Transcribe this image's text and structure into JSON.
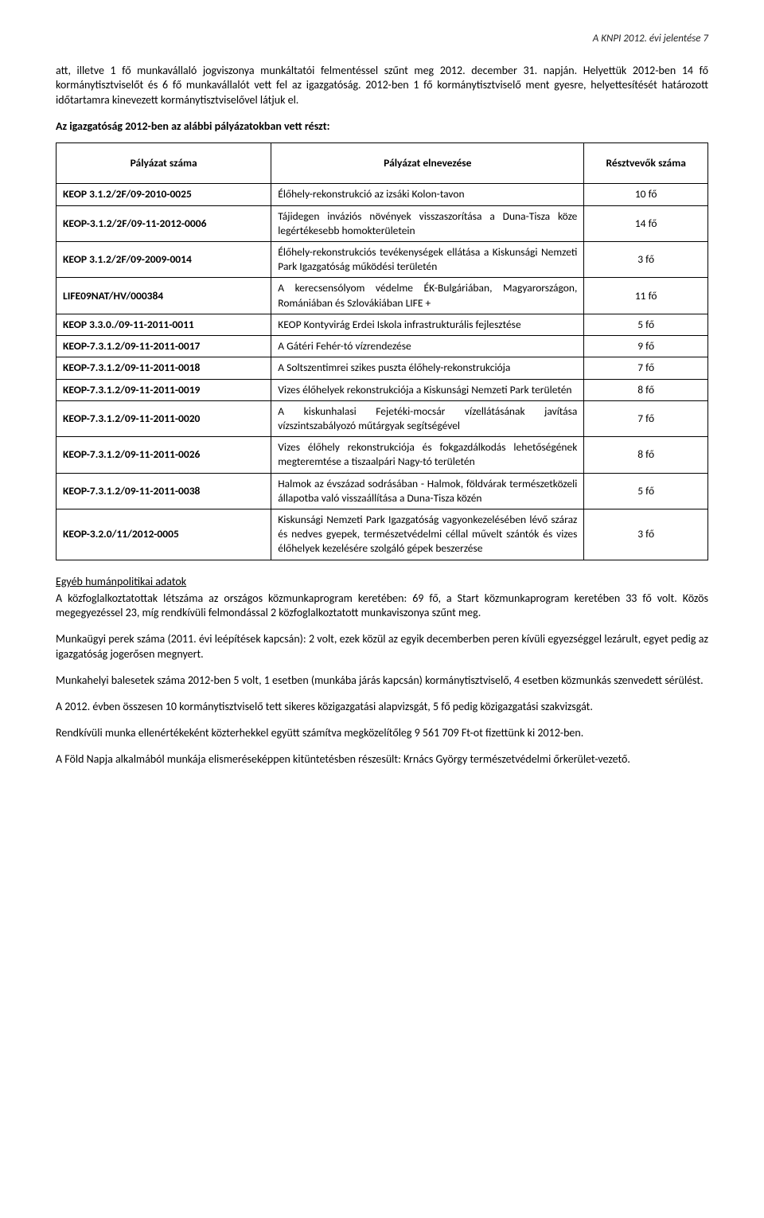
{
  "header": {
    "text": "A KNPI 2012. évi jelentése   7"
  },
  "intro_paragraphs": [
    "att, illetve 1 fő munkavállaló jogviszonya munkáltatói felmentéssel szűnt meg 2012. december 31. napján. Helyettük 2012-ben 14 fő kormánytisztviselőt és 6 fő munkavállalót vett fel az igazgatóság. 2012-ben 1 fő kormánytisztviselő ment gyesre, helyettesítését határozott időtartamra kinevezett kormánytisztviselővel látjuk el."
  ],
  "bold_intro": "Az igazgatóság 2012-ben az alábbi pályázatokban vett részt:",
  "table": {
    "headers": {
      "code": "Pályázat száma",
      "desc": "Pályázat elnevezése",
      "count": "Résztvevők száma"
    },
    "rows": [
      {
        "code": "KEOP 3.1.2/2F/09-2010-0025",
        "desc": "Élőhely-rekonstrukció az izsáki Kolon-tavon",
        "count": "10 fő"
      },
      {
        "code": "KEOP-3.1.2/2F/09-11-2012-0006",
        "desc": "Tájidegen inváziós növények visszaszorítása a Duna-Tisza köze legértékesebb homokterületein",
        "count": "14 fő"
      },
      {
        "code": "KEOP 3.1.2/2F/09-2009-0014",
        "desc": "Élőhely-rekonstrukciós tevékenységek ellátása a Kiskunsági Nemzeti Park Igazgatóság működési területén",
        "count": "3 fő"
      },
      {
        "code": "LIFE09NAT/HV/000384",
        "desc": "A kerecsensólyom védelme ÉK-Bulgáriában, Magyarországon, Romániában és Szlovákiában LIFE +",
        "count": "11 fő"
      },
      {
        "code": "KEOP 3.3.0./09-11-2011-0011",
        "desc": "KEOP Kontyvirág Erdei Iskola infrastrukturális fejlesztése",
        "count": "5 fő"
      },
      {
        "code": "KEOP-7.3.1.2/09-11-2011-0017",
        "desc": "A Gátéri Fehér-tó vízrendezése",
        "count": "9 fő"
      },
      {
        "code": "KEOP-7.3.1.2/09-11-2011-0018",
        "desc": "A Soltszentimrei szikes puszta élőhely-rekonstrukciója",
        "count": "7 fő"
      },
      {
        "code": "KEOP-7.3.1.2/09-11-2011-0019",
        "desc": "Vizes élőhelyek rekonstrukciója a Kiskunsági Nemzeti Park területén",
        "count": "8 fő"
      },
      {
        "code": "KEOP-7.3.1.2/09-11-2011-0020",
        "desc": "A kiskunhalasi Fejetéki-mocsár vízellátásának javítása vízszintszabályozó műtárgyak segítségével",
        "count": "7 fő"
      },
      {
        "code": "KEOP-7.3.1.2/09-11-2011-0026",
        "desc": "Vizes élőhely rekonstrukciója és fokgazdálkodás lehetőségének megteremtése a tiszaalpári Nagy-tó területén",
        "count": "8 fő"
      },
      {
        "code": "KEOP-7.3.1.2/09-11-2011-0038",
        "desc": "Halmok az évszázad sodrásában - Halmok, földvárak természetközeli állapotba való visszaállítása a Duna-Tisza közén",
        "count": "5 fő"
      },
      {
        "code": "KEOP-3.2.0/11/2012-0005",
        "desc": "Kiskunsági Nemzeti Park Igazgatóság vagyonkezelésében lévő száraz és nedves gyepek, természetvédelmi céllal művelt szántók és vizes élőhelyek kezelésére szolgáló gépek beszerzése",
        "count": "3 fő"
      }
    ]
  },
  "section_heading": "Egyéb humánpolitikai adatok",
  "body_paragraphs": [
    "A közfoglalkoztatottak létszáma az országos közmunkaprogram keretében: 69 fő, a Start közmunkaprogram keretében 33 fő volt. Közös megegyezéssel 23, míg rendkívüli felmondással 2 közfoglalkoztatott munkaviszonya szűnt meg.",
    "Munkaügyi perek száma (2011. évi leépítések kapcsán): 2 volt, ezek közül az egyik decemberben peren kívüli egyezséggel lezárult, egyet pedig az igazgatóság jogerősen megnyert.",
    "Munkahelyi balesetek száma 2012-ben 5 volt, 1 esetben (munkába járás kapcsán) kormánytisztviselő, 4 esetben közmunkás szenvedett sérülést.",
    "A 2012. évben összesen 10 kormánytisztviselő tett sikeres közigazgatási alapvizsgát, 5 fő pedig közigazgatási szakvizsgát.",
    "Rendkívüli munka ellenértékeként közterhekkel együtt számítva megközelítőleg 9 561 709 Ft-ot fizettünk ki 2012-ben.",
    "A Föld Napja alkalmából munkája elismeréseképpen kitüntetésben részesült: Krnács György természetvédelmi őrkerület-vezető."
  ]
}
